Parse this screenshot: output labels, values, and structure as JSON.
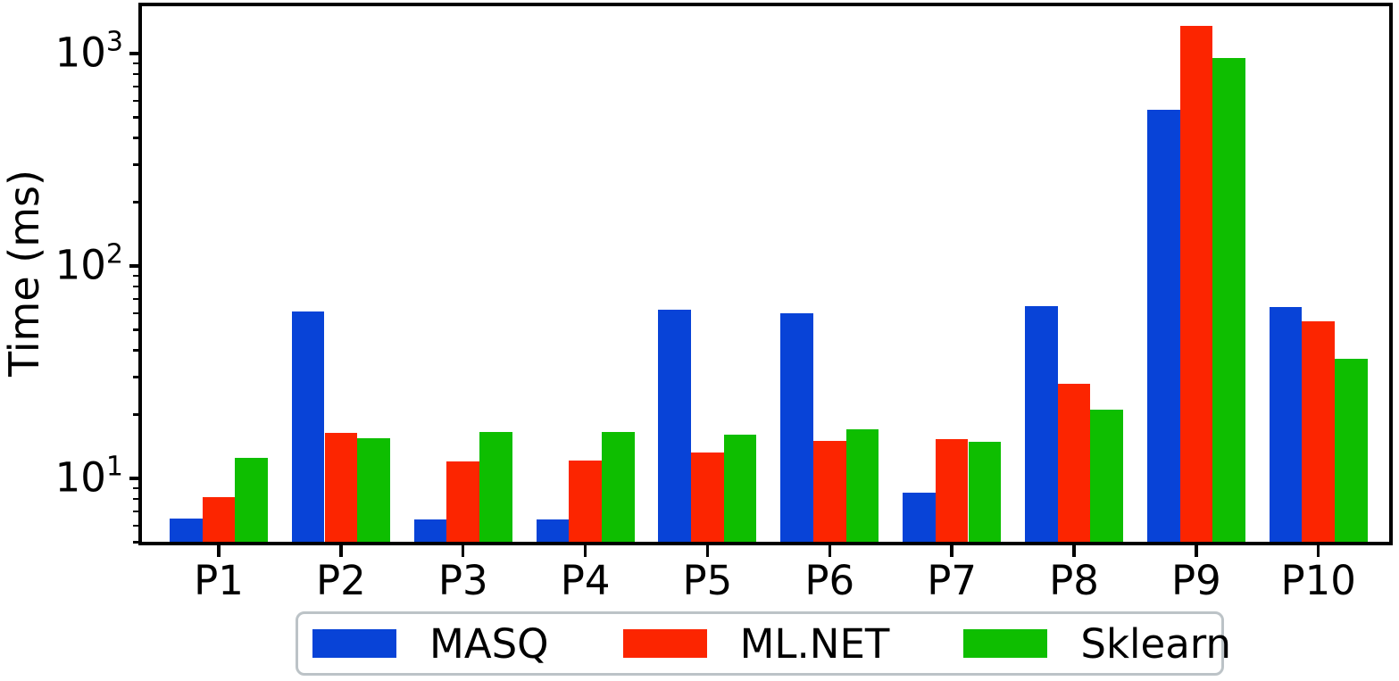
{
  "chart_data": {
    "type": "bar",
    "title": "",
    "xlabel": "",
    "ylabel": "Time (ms)",
    "yscale": "log",
    "ylim": [
      5,
      1700
    ],
    "grid": false,
    "legend_position": "bottom-center",
    "categories": [
      "P1",
      "P2",
      "P3",
      "P4",
      "P5",
      "P6",
      "P7",
      "P8",
      "P9",
      "P10"
    ],
    "series": [
      {
        "name": "MASQ",
        "color": "#0843d7",
        "values": [
          6.5,
          61,
          6.4,
          6.4,
          62,
          60,
          8.6,
          65,
          545,
          64
        ]
      },
      {
        "name": "ML.NET",
        "color": "#fc2500",
        "values": [
          8.2,
          16.4,
          12,
          12.1,
          13.2,
          15,
          15.3,
          28,
          1350,
          55
        ]
      },
      {
        "name": "Sklearn",
        "color": "#0ebe00",
        "values": [
          12.5,
          15.5,
          16.5,
          16.6,
          16.1,
          17.1,
          14.8,
          21,
          950,
          36.5
        ]
      }
    ],
    "yticks": [
      {
        "base": "10",
        "exp": "1",
        "value": 10
      },
      {
        "base": "10",
        "exp": "2",
        "value": 100
      },
      {
        "base": "10",
        "exp": "3",
        "value": 1000
      }
    ],
    "y_minor_ticks": [
      5,
      6,
      7,
      8,
      9,
      20,
      30,
      40,
      50,
      60,
      70,
      80,
      90,
      200,
      300,
      400,
      500,
      600,
      700,
      800,
      900
    ]
  }
}
